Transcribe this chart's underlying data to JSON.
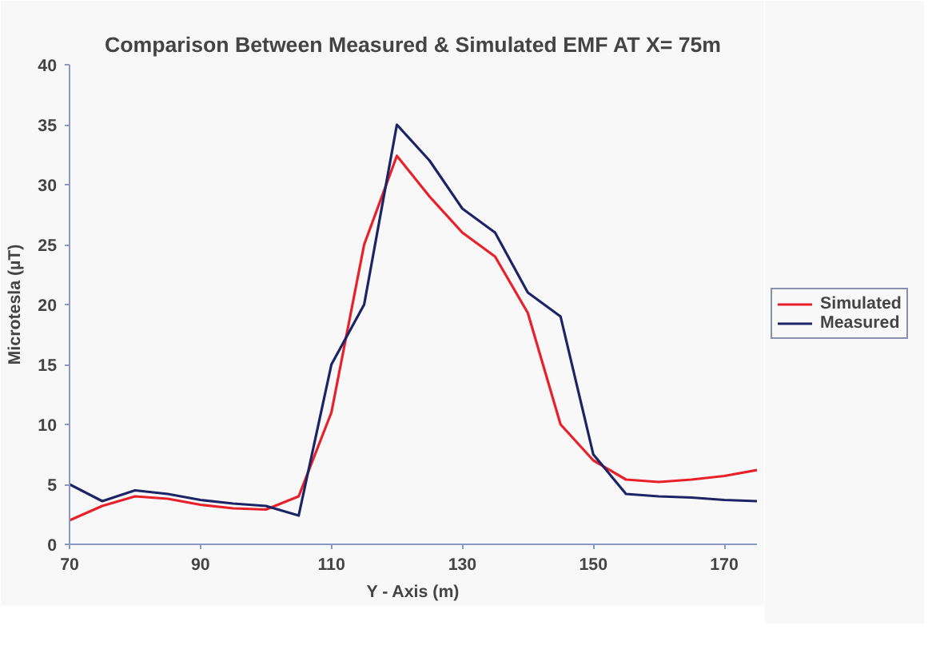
{
  "chart_data": {
    "type": "line",
    "title": "Comparison Between Measured & Simulated EMF AT X= 75m",
    "xlabel": "Y - Axis (m)",
    "ylabel": "Microtesla (µT)",
    "x": [
      70,
      75,
      80,
      85,
      90,
      95,
      100,
      105,
      110,
      115,
      120,
      125,
      130,
      135,
      140,
      145,
      150,
      155,
      160,
      165,
      170,
      175
    ],
    "series": [
      {
        "name": "Simulated",
        "color": "#e8202a",
        "values": [
          2,
          3.2,
          4,
          3.8,
          3.3,
          3.0,
          2.9,
          4,
          11,
          25,
          32.4,
          29,
          26,
          24,
          19.3,
          10,
          7,
          5.4,
          5.2,
          5.4,
          5.7,
          6.2
        ]
      },
      {
        "name": "Measured",
        "color": "#1c2466",
        "values": [
          5,
          3.6,
          4.5,
          4.2,
          3.7,
          3.4,
          3.2,
          2.4,
          15,
          20,
          35,
          32,
          28,
          26,
          21,
          19,
          7.5,
          4.2,
          4.0,
          3.9,
          3.7,
          3.6
        ]
      }
    ],
    "xlim": [
      70,
      175
    ],
    "xticks": [
      70,
      90,
      110,
      130,
      150,
      170
    ],
    "ylim": [
      0,
      40
    ],
    "yticks": [
      0,
      5,
      10,
      15,
      20,
      25,
      30,
      35,
      40
    ],
    "grid": false,
    "legend": "right",
    "marker": "none",
    "line_style": "solid"
  }
}
